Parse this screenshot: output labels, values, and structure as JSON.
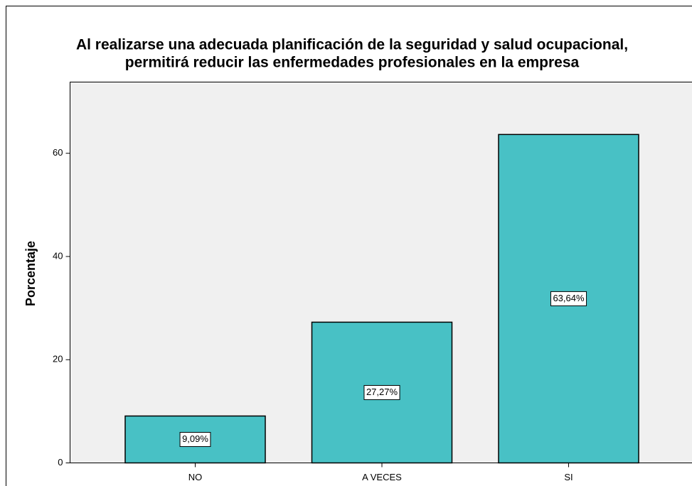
{
  "chart_data": {
    "type": "bar",
    "title": [
      "Al realizarse una adecuada planificación de la seguridad y salud ocupacional,",
      "permitirá reducir las enfermedades profesionales en la empresa"
    ],
    "y_label": "Porcentaje",
    "categories": [
      "NO",
      "A VECES",
      "SI"
    ],
    "values": [
      9.09,
      27.27,
      63.64
    ],
    "value_labels": [
      "9,09%",
      "27,27%",
      "63,64%"
    ],
    "color": "#48c1c5",
    "ylim": [
      0,
      73.8
    ],
    "yticks": [
      0,
      20,
      40,
      60
    ],
    "grid": false
  }
}
